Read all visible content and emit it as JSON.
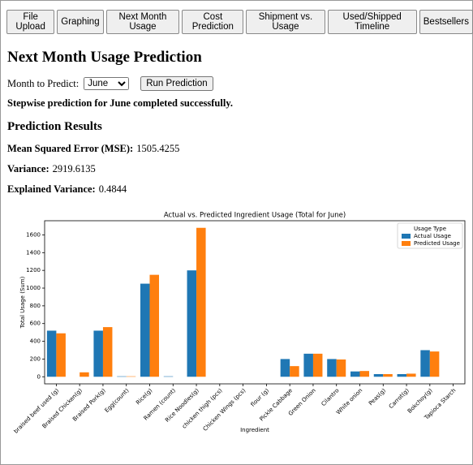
{
  "tabs": [
    "File Upload",
    "Graphing",
    "Next Month Usage",
    "Cost Prediction",
    "Shipment vs. Usage",
    "Used/Shipped Timeline",
    "Bestsellers"
  ],
  "heading": "Next Month Usage Prediction",
  "form": {
    "label": "Month to Predict:",
    "selected": "June",
    "button": "Run Prediction"
  },
  "status": "Stepwise prediction for June completed successfully.",
  "results": {
    "title": "Prediction Results",
    "items": [
      {
        "label": "Mean Squared Error (MSE):",
        "value": "1505.4255"
      },
      {
        "label": "Variance:",
        "value": "2919.6135"
      },
      {
        "label": "Explained Variance:",
        "value": "0.4844"
      }
    ]
  },
  "chart_data": {
    "type": "bar",
    "title": "Actual vs. Predicted Ingredient Usage (Total for June)",
    "x_label": "Ingredient",
    "y_label": "Total Usage (Sum)",
    "legend_title": "Usage Type",
    "legend": "upper right",
    "categories": [
      "braised beef used (g)",
      "Braised Chicken(g)",
      "Braised Pork(g)",
      "Egg(count)",
      "Rice(g)",
      "Ramen (count)",
      "Rice Noodles(g)",
      "chicken thigh (pcs)",
      "Chicken Wings (pcs)",
      "flour (g)",
      "Pickle Cabbage",
      "Green Onion",
      "Cilantro",
      "White onion",
      "Peas(g)",
      "Carrot(g)",
      "Bokchoy(g)",
      "Tapioca Starch"
    ],
    "series": [
      {
        "name": "Actual Usage",
        "color": "#1f77b4",
        "values": [
          520,
          0,
          520,
          5,
          1050,
          5,
          1200,
          0,
          0,
          0,
          200,
          260,
          200,
          60,
          30,
          30,
          300,
          0
        ]
      },
      {
        "name": "Predicted Usage",
        "color": "#ff7f0e",
        "values": [
          490,
          50,
          560,
          5,
          1150,
          0,
          1680,
          0,
          0,
          0,
          120,
          260,
          195,
          65,
          30,
          35,
          285,
          0
        ]
      }
    ],
    "ylim": [
      -80,
      1760
    ],
    "yticks": [
      0,
      200,
      400,
      600,
      800,
      1000,
      1200,
      1400,
      1600
    ]
  }
}
